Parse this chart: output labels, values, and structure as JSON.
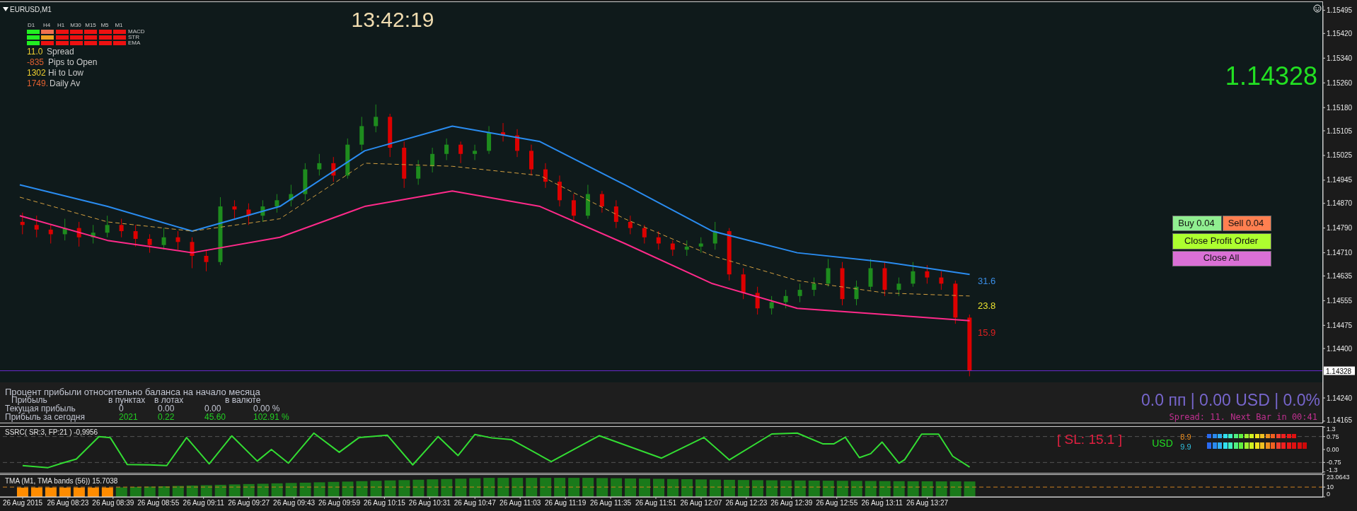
{
  "chart_data": [
    {
      "type": "candlestick",
      "title": "EURUSD,M1",
      "x": [
        "2015-08-26T08:07",
        "2015-08-26T08:12",
        "2015-08-26T08:17",
        "2015-08-26T08:22",
        "2015-08-26T08:27",
        "2015-08-26T08:32",
        "2015-08-26T08:37",
        "2015-08-26T08:42",
        "2015-08-26T08:47",
        "2015-08-26T08:52",
        "2015-08-26T08:57",
        "2015-08-26T09:02",
        "2015-08-26T09:07",
        "2015-08-26T09:12",
        "2015-08-26T09:17",
        "2015-08-26T09:22",
        "2015-08-26T09:27",
        "2015-08-26T09:32",
        "2015-08-26T09:37",
        "2015-08-26T09:42",
        "2015-08-26T09:47",
        "2015-08-26T09:52",
        "2015-08-26T09:57",
        "2015-08-26T10:02",
        "2015-08-26T10:07",
        "2015-08-26T10:12",
        "2015-08-26T10:17",
        "2015-08-26T10:22",
        "2015-08-26T10:27",
        "2015-08-26T10:32",
        "2015-08-26T10:37",
        "2015-08-26T10:42",
        "2015-08-26T10:47",
        "2015-08-26T10:52",
        "2015-08-26T10:57",
        "2015-08-26T11:02",
        "2015-08-26T11:07",
        "2015-08-26T11:12",
        "2015-08-26T11:17",
        "2015-08-26T11:22",
        "2015-08-26T11:27",
        "2015-08-26T11:32",
        "2015-08-26T11:37",
        "2015-08-26T11:42",
        "2015-08-26T11:47",
        "2015-08-26T11:52",
        "2015-08-26T11:57",
        "2015-08-26T12:02",
        "2015-08-26T12:07",
        "2015-08-26T12:12",
        "2015-08-26T12:17",
        "2015-08-26T12:22",
        "2015-08-26T12:27",
        "2015-08-26T12:32",
        "2015-08-26T12:37",
        "2015-08-26T12:42",
        "2015-08-26T12:47",
        "2015-08-26T12:52",
        "2015-08-26T12:57",
        "2015-08-26T13:02",
        "2015-08-26T13:07",
        "2015-08-26T13:12",
        "2015-08-26T13:17",
        "2015-08-26T13:22",
        "2015-08-26T13:27",
        "2015-08-26T13:32",
        "2015-08-26T13:37",
        "2015-08-26T13:42"
      ],
      "ohlc": [
        [
          1.1481,
          1.1484,
          1.1477,
          1.148
        ],
        [
          1.148,
          1.1483,
          1.1476,
          1.14785
        ],
        [
          1.14785,
          1.148,
          1.1474,
          1.1477
        ],
        [
          1.1477,
          1.1482,
          1.1475,
          1.1479
        ],
        [
          1.1479,
          1.1481,
          1.1473,
          1.1476
        ],
        [
          1.1476,
          1.148,
          1.1474,
          1.14775
        ],
        [
          1.14775,
          1.1483,
          1.1476,
          1.148
        ],
        [
          1.148,
          1.1482,
          1.1476,
          1.1478
        ],
        [
          1.1478,
          1.148,
          1.1473,
          1.14755
        ],
        [
          1.14755,
          1.1477,
          1.1471,
          1.14735
        ],
        [
          1.14735,
          1.1479,
          1.1472,
          1.1476
        ],
        [
          1.1476,
          1.1478,
          1.1472,
          1.14745
        ],
        [
          1.14745,
          1.1476,
          1.1466,
          1.147
        ],
        [
          1.147,
          1.1472,
          1.1465,
          1.1468
        ],
        [
          1.1468,
          1.1489,
          1.1467,
          1.1486
        ],
        [
          1.1486,
          1.1488,
          1.1482,
          1.1485
        ],
        [
          1.1485,
          1.1487,
          1.148,
          1.1483
        ],
        [
          1.1483,
          1.1488,
          1.1481,
          1.1486
        ],
        [
          1.1486,
          1.149,
          1.1484,
          1.1488
        ],
        [
          1.1488,
          1.1493,
          1.1486,
          1.149
        ],
        [
          1.149,
          1.15,
          1.1488,
          1.1498
        ],
        [
          1.1498,
          1.1503,
          1.1496,
          1.15
        ],
        [
          1.15,
          1.1502,
          1.1494,
          1.1496
        ],
        [
          1.1496,
          1.1508,
          1.1495,
          1.1506
        ],
        [
          1.1506,
          1.1515,
          1.1504,
          1.1512
        ],
        [
          1.1512,
          1.1519,
          1.151,
          1.1515
        ],
        [
          1.1515,
          1.1516,
          1.1502,
          1.1505
        ],
        [
          1.1505,
          1.1507,
          1.1492,
          1.1495
        ],
        [
          1.1495,
          1.1501,
          1.1493,
          1.1499
        ],
        [
          1.1499,
          1.1505,
          1.1497,
          1.1503
        ],
        [
          1.1503,
          1.1508,
          1.1501,
          1.1506
        ],
        [
          1.1506,
          1.1507,
          1.15,
          1.1503
        ],
        [
          1.1503,
          1.1506,
          1.1501,
          1.1504
        ],
        [
          1.1504,
          1.1512,
          1.1503,
          1.151
        ],
        [
          1.151,
          1.1513,
          1.1507,
          1.1509
        ],
        [
          1.1509,
          1.1511,
          1.1502,
          1.1504
        ],
        [
          1.1504,
          1.1506,
          1.1496,
          1.1498
        ],
        [
          1.1498,
          1.15,
          1.1492,
          1.1494
        ],
        [
          1.1494,
          1.1496,
          1.1486,
          1.1488
        ],
        [
          1.1488,
          1.149,
          1.1481,
          1.1483
        ],
        [
          1.1483,
          1.1493,
          1.1482,
          1.149
        ],
        [
          1.149,
          1.1491,
          1.1484,
          1.1486
        ],
        [
          1.1486,
          1.1488,
          1.1479,
          1.1481
        ],
        [
          1.1481,
          1.1483,
          1.1477,
          1.1479
        ],
        [
          1.1479,
          1.148,
          1.1474,
          1.1476
        ],
        [
          1.1476,
          1.1478,
          1.1472,
          1.1474
        ],
        [
          1.1474,
          1.1475,
          1.147,
          1.1472
        ],
        [
          1.1472,
          1.1475,
          1.147,
          1.1473
        ],
        [
          1.1473,
          1.1476,
          1.1471,
          1.1474
        ],
        [
          1.1474,
          1.1481,
          1.1472,
          1.1478
        ],
        [
          1.1478,
          1.1479,
          1.1462,
          1.1464
        ],
        [
          1.1464,
          1.1466,
          1.1456,
          1.1458
        ],
        [
          1.1458,
          1.146,
          1.1451,
          1.1453
        ],
        [
          1.1453,
          1.1457,
          1.1451,
          1.1455
        ],
        [
          1.1455,
          1.1459,
          1.1453,
          1.1457
        ],
        [
          1.1457,
          1.1461,
          1.1455,
          1.1459
        ],
        [
          1.1459,
          1.1463,
          1.1457,
          1.1461
        ],
        [
          1.1461,
          1.1469,
          1.146,
          1.1466
        ],
        [
          1.1466,
          1.1468,
          1.1454,
          1.1456
        ],
        [
          1.1456,
          1.1462,
          1.1454,
          1.146
        ],
        [
          1.146,
          1.1469,
          1.1459,
          1.1466
        ],
        [
          1.1466,
          1.1468,
          1.1457,
          1.1459
        ],
        [
          1.1459,
          1.1463,
          1.1457,
          1.1461
        ],
        [
          1.1461,
          1.1468,
          1.146,
          1.1465
        ],
        [
          1.1465,
          1.1467,
          1.1461,
          1.1463
        ],
        [
          1.1463,
          1.1465,
          1.1459,
          1.1461
        ],
        [
          1.1461,
          1.1462,
          1.1448,
          1.145
        ],
        [
          1.145,
          1.1451,
          1.1431,
          1.14328
        ]
      ],
      "colors": [
        "#dd0000",
        "#dd0000",
        "#dd0000",
        "#1e8c1e",
        "#dd0000",
        "#1e8c1e",
        "#1e8c1e",
        "#dd0000",
        "#dd0000",
        "#dd0000",
        "#1e8c1e",
        "#dd0000",
        "#dd0000",
        "#dd0000",
        "#1e8c1e",
        "#dd0000",
        "#dd0000",
        "#1e8c1e",
        "#1e8c1e",
        "#1e8c1e",
        "#1e8c1e",
        "#1e8c1e",
        "#dd0000",
        "#1e8c1e",
        "#1e8c1e",
        "#1e8c1e",
        "#dd0000",
        "#dd0000",
        "#1e8c1e",
        "#1e8c1e",
        "#1e8c1e",
        "#dd0000",
        "#1e8c1e",
        "#1e8c1e",
        "#dd0000",
        "#dd0000",
        "#dd0000",
        "#dd0000",
        "#dd0000",
        "#dd0000",
        "#1e8c1e",
        "#dd0000",
        "#dd0000",
        "#dd0000",
        "#dd0000",
        "#dd0000",
        "#dd0000",
        "#1e8c1e",
        "#1e8c1e",
        "#1e8c1e",
        "#dd0000",
        "#dd0000",
        "#dd0000",
        "#1e8c1e",
        "#1e8c1e",
        "#1e8c1e",
        "#1e8c1e",
        "#1e8c1e",
        "#dd0000",
        "#1e8c1e",
        "#1e8c1e",
        "#dd0000",
        "#1e8c1e",
        "#1e8c1e",
        "#dd0000",
        "#dd0000",
        "#dd0000",
        "#dd0000"
      ],
      "series": [
        {
          "type": "line",
          "color": "#2a8cf0",
          "x": [
            "2015-08-26T08:06",
            "2015-08-26T08:37",
            "2015-08-26T09:07",
            "2015-08-26T09:38",
            "2015-08-26T10:08",
            "2015-08-26T10:39",
            "2015-08-26T11:10",
            "2015-08-26T11:40",
            "2015-08-26T12:11",
            "2015-08-26T12:41",
            "2015-08-26T13:12",
            "2015-08-26T13:42"
          ],
          "values": [
            1.1493,
            1.1486,
            1.1478,
            1.1486,
            1.1504,
            1.1512,
            1.1507,
            1.1493,
            1.1478,
            1.1471,
            1.1468,
            1.1464
          ]
        },
        {
          "type": "line",
          "color": "#ff2a8a",
          "x": [
            "2015-08-26T08:06",
            "2015-08-26T08:37",
            "2015-08-26T09:07",
            "2015-08-26T09:38",
            "2015-08-26T10:08",
            "2015-08-26T10:39",
            "2015-08-26T11:10",
            "2015-08-26T11:40",
            "2015-08-26T12:11",
            "2015-08-26T12:41",
            "2015-08-26T13:12",
            "2015-08-26T13:42"
          ],
          "values": [
            1.1483,
            1.1475,
            1.1471,
            1.1476,
            1.1486,
            1.1491,
            1.1486,
            1.1474,
            1.1461,
            1.1453,
            1.1451,
            1.1449
          ]
        },
        {
          "type": "line",
          "color": "#d4a040",
          "line_style": "dashed",
          "x": [
            "2015-08-26T08:06",
            "2015-08-26T08:37",
            "2015-08-26T09:07",
            "2015-08-26T09:38",
            "2015-08-26T10:08",
            "2015-08-26T10:39",
            "2015-08-26T11:10",
            "2015-08-26T11:40",
            "2015-08-26T12:11",
            "2015-08-26T12:41",
            "2015-08-26T13:12",
            "2015-08-26T13:42"
          ],
          "values": [
            1.1489,
            1.1481,
            1.1478,
            1.1482,
            1.15,
            1.1499,
            1.1496,
            1.1482,
            1.147,
            1.1462,
            1.1458,
            1.1457
          ]
        }
      ],
      "xlim": [
        "2015-08-26T07:59",
        "2015-08-26T15:47"
      ],
      "ylim": [
        1.1416,
        1.1551
      ],
      "yticks": [
        1.15495,
        {
          "value": 1.1542,
          "label": "1.15420"
        },
        {
          "value": 1.1534,
          "label": "1.15340"
        },
        {
          "value": 1.1526,
          "label": "1.15260"
        },
        {
          "value": 1.1518,
          "label": "1.15180"
        },
        1.15105,
        1.15025,
        1.14945,
        {
          "value": 1.1487,
          "label": "1.14870"
        },
        {
          "value": 1.1479,
          "label": "1.14790"
        },
        {
          "value": 1.1471,
          "label": "1.14710"
        },
        1.14635,
        1.14555,
        1.14475,
        {
          "value": 1.144,
          "label": "1.14400"
        },
        {
          "value": 1.1424,
          "label": "1.14240"
        },
        1.14165
      ],
      "tick_labels": "y",
      "ref_lines": [
        {
          "axis": "y",
          "value": 1.14328,
          "label": "1.14328",
          "color": "#6a2ad0"
        }
      ],
      "annotations": [
        "13:42:19",
        "D1",
        "H4",
        "H1",
        "M30",
        "M15",
        "M5",
        "M1",
        "MACD",
        "STR",
        "EMA",
        "11.0",
        "Spread",
        "-835",
        "Pips to Open",
        "1302",
        "Hi to Low",
        "1749.",
        "Daily Av",
        "1.14328",
        "Buy 0.04",
        "Sell 0.04",
        "Close Profit Order",
        "Close All",
        "Процент прибыли относительно баланса на начало месяца",
        "Прибыль",
        "в пунктах",
        "в лотах",
        "в валюте",
        "Текущая прибыль",
        "0",
        "0.00",
        "0.00",
        "0.00 %",
        "Прибыль за сегодня",
        "2021",
        "0.22",
        "45.60",
        "102.91 %",
        "0.0 пп | 0.00 USD | 0.0%",
        "Spread: 11. Next Bar in 00:41",
        "31.6",
        "23.8",
        "15.9"
      ]
    },
    {
      "type": "line",
      "title": "SSRC( SR:3, FP:21 ) -0,9956",
      "series": [
        {
          "color": "#33dd33",
          "x": [
            "2015-08-26T08:07",
            "2015-08-26T08:16",
            "2015-08-26T08:21",
            "2015-08-26T08:26",
            "2015-08-26T08:34",
            "2015-08-26T08:38",
            "2015-08-26T08:44",
            "2015-08-26T08:52",
            "2015-08-26T08:58",
            "2015-08-26T09:05",
            "2015-08-26T09:13",
            "2015-08-26T09:21",
            "2015-08-26T09:30",
            "2015-08-26T09:35",
            "2015-08-26T09:41",
            "2015-08-26T09:50",
            "2015-08-26T09:59",
            "2015-08-26T10:06",
            "2015-08-26T10:16",
            "2015-08-26T10:25",
            "2015-08-26T10:34",
            "2015-08-26T10:41",
            "2015-08-26T10:47",
            "2015-08-26T10:53",
            "2015-08-26T11:00",
            "2015-08-26T11:14",
            "2015-08-26T11:31",
            "2015-08-26T11:53",
            "2015-08-26T12:08",
            "2015-08-26T12:17",
            "2015-08-26T12:32",
            "2015-08-26T12:41",
            "2015-08-26T12:50",
            "2015-08-26T12:54",
            "2015-08-26T12:58",
            "2015-08-26T13:03",
            "2015-08-26T13:07",
            "2015-08-26T13:11",
            "2015-08-26T13:17",
            "2015-08-26T13:19",
            "2015-08-26T13:25",
            "2015-08-26T13:31",
            "2015-08-26T13:36",
            "2015-08-26T13:42"
          ],
          "values": [
            -0.93,
            -1.05,
            -0.79,
            -0.55,
            0.75,
            0.69,
            -0.87,
            -0.89,
            -0.93,
            0.69,
            -0.83,
            0.79,
            -0.67,
            0.0,
            -0.79,
            0.95,
            -0.16,
            0.69,
            0.83,
            -0.89,
            0.75,
            -0.35,
            0.87,
            0.67,
            0.57,
            -0.7,
            0.8,
            -0.5,
            0.7,
            -0.6,
            0.9,
            0.95,
            0.33,
            0.33,
            0.71,
            -0.47,
            -0.24,
            0.43,
            -0.79,
            -0.59,
            0.89,
            0.89,
            -0.39,
            -1.02
          ]
        }
      ],
      "xlim": [
        "2015-08-26T07:59",
        "2015-08-26T15:47"
      ],
      "ylim": [
        -1.35,
        1.35
      ],
      "yticks": [
        1.3,
        0.75,
        {
          "value": 0,
          "label": "0.00"
        },
        -0.75,
        -1.3
      ],
      "tick_labels": "y",
      "ref_lines": [
        {
          "axis": "y",
          "value": 0.75,
          "color": "#555555",
          "line_style": "dashed"
        },
        {
          "axis": "y",
          "value": -0.75,
          "color": "#555555",
          "line_style": "dashed"
        }
      ],
      "annotations": [
        "[ SL: 15.1 ]",
        "USD",
        "8.9",
        "9.9"
      ]
    },
    {
      "type": "bar",
      "title": "TMA (M1, TMA bands (56)) 15.7038",
      "x": [
        "2015-08-26T08:07",
        "2015-08-26T08:12",
        "2015-08-26T08:17",
        "2015-08-26T08:22",
        "2015-08-26T08:27",
        "2015-08-26T08:32",
        "2015-08-26T08:37",
        "2015-08-26T08:42",
        "2015-08-26T08:47",
        "2015-08-26T08:52",
        "2015-08-26T08:57",
        "2015-08-26T09:02",
        "2015-08-26T09:07",
        "2015-08-26T09:12",
        "2015-08-26T09:17",
        "2015-08-26T09:22",
        "2015-08-26T09:27",
        "2015-08-26T09:32",
        "2015-08-26T09:37",
        "2015-08-26T09:42",
        "2015-08-26T09:47",
        "2015-08-26T09:52",
        "2015-08-26T09:57",
        "2015-08-26T10:02",
        "2015-08-26T10:07",
        "2015-08-26T10:12",
        "2015-08-26T10:17",
        "2015-08-26T10:22",
        "2015-08-26T10:27",
        "2015-08-26T10:32",
        "2015-08-26T10:37",
        "2015-08-26T10:42",
        "2015-08-26T10:47",
        "2015-08-26T10:52",
        "2015-08-26T10:57",
        "2015-08-26T11:02",
        "2015-08-26T11:07",
        "2015-08-26T11:12",
        "2015-08-26T11:17",
        "2015-08-26T11:22",
        "2015-08-26T11:27",
        "2015-08-26T11:32",
        "2015-08-26T11:37",
        "2015-08-26T11:42",
        "2015-08-26T11:47",
        "2015-08-26T11:52",
        "2015-08-26T11:57",
        "2015-08-26T12:02",
        "2015-08-26T12:07",
        "2015-08-26T12:12",
        "2015-08-26T12:17",
        "2015-08-26T12:22",
        "2015-08-26T12:27",
        "2015-08-26T12:32",
        "2015-08-26T12:37",
        "2015-08-26T12:42",
        "2015-08-26T12:47",
        "2015-08-26T12:52",
        "2015-08-26T12:57",
        "2015-08-26T13:02",
        "2015-08-26T13:07",
        "2015-08-26T13:12",
        "2015-08-26T13:17",
        "2015-08-26T13:22",
        "2015-08-26T13:27",
        "2015-08-26T13:32",
        "2015-08-26T13:37",
        "2015-08-26T13:42"
      ],
      "values": [
        9.4,
        9.4,
        9.4,
        9.4,
        9.4,
        9.4,
        9.4,
        9.7,
        10.1,
        10.5,
        10.8,
        11.2,
        11.6,
        11.9,
        12.3,
        12.7,
        13.1,
        13.4,
        13.8,
        14.2,
        14.5,
        14.9,
        15.3,
        15.6,
        16,
        16.4,
        16.8,
        17.1,
        17.5,
        17.9,
        18.2,
        18.6,
        19,
        19.4,
        19.4,
        19.4,
        19.4,
        19.4,
        19.4,
        19.4,
        19.4,
        19.2,
        19,
        18.8,
        18.6,
        18.4,
        18.2,
        18,
        17.8,
        17.6,
        17.4,
        17.2,
        17,
        16.9,
        16.8,
        16.7,
        16.6,
        16.5,
        16.4,
        16.3,
        16.2,
        16.1,
        16,
        15.9,
        15.9,
        15.8,
        15.8,
        15.7
      ],
      "colors": [
        "#ff8c00",
        "#ff8c00",
        "#ff8c00",
        "#ff8c00",
        "#ff8c00",
        "#ff8c00",
        "#ff8c00",
        "#1a7a1a",
        "#1a7a1a",
        "#1a7a1a",
        "#1a7a1a",
        "#1a7a1a",
        "#1a7a1a",
        "#1a7a1a",
        "#1a7a1a",
        "#1a7a1a",
        "#1a7a1a",
        "#1a7a1a",
        "#1a7a1a",
        "#1a7a1a",
        "#1a7a1a",
        "#1a7a1a",
        "#1a7a1a",
        "#1a7a1a",
        "#1a7a1a",
        "#1a7a1a",
        "#1a7a1a",
        "#1a7a1a",
        "#1a7a1a",
        "#1a7a1a",
        "#1a7a1a",
        "#1a7a1a",
        "#1a7a1a",
        "#1a7a1a",
        "#1a7a1a",
        "#1a7a1a",
        "#1a7a1a",
        "#1a7a1a",
        "#1a7a1a",
        "#1a7a1a",
        "#1a7a1a",
        "#1a7a1a",
        "#1a7a1a",
        "#1a7a1a",
        "#1a7a1a",
        "#1a7a1a",
        "#1a7a1a",
        "#1a7a1a",
        "#1a7a1a",
        "#1a7a1a",
        "#1a7a1a",
        "#1a7a1a",
        "#1a7a1a",
        "#1a7a1a",
        "#1a7a1a",
        "#1a7a1a",
        "#1a7a1a",
        "#1a7a1a",
        "#1a7a1a",
        "#1a7a1a",
        "#1a7a1a",
        "#1a7a1a",
        "#1a7a1a",
        "#1a7a1a",
        "#1a7a1a",
        "#1a7a1a",
        "#1a7a1a",
        "#1a7a1a"
      ],
      "xlim": [
        "2015-08-26T07:59",
        "2015-08-26T15:47"
      ],
      "ylim": [
        0,
        23.0643
      ],
      "xticks": [
        {
          "value": "2015-08-26T08:07",
          "label": "26 Aug 2015"
        },
        {
          "value": "2015-08-26T08:23",
          "label": "26 Aug 08:23"
        },
        {
          "value": "2015-08-26T08:39",
          "label": "26 Aug 08:39"
        },
        {
          "value": "2015-08-26T08:55",
          "label": "26 Aug 08:55"
        },
        {
          "value": "2015-08-26T09:11",
          "label": "26 Aug 09:11"
        },
        {
          "value": "2015-08-26T09:27",
          "label": "26 Aug 09:27"
        },
        {
          "value": "2015-08-26T09:43",
          "label": "26 Aug 09:43"
        },
        {
          "value": "2015-08-26T09:59",
          "label": "26 Aug 09:59"
        },
        {
          "value": "2015-08-26T10:15",
          "label": "26 Aug 10:15"
        },
        {
          "value": "2015-08-26T10:31",
          "label": "26 Aug 10:31"
        },
        {
          "value": "2015-08-26T10:47",
          "label": "26 Aug 10:47"
        },
        {
          "value": "2015-08-26T11:03",
          "label": "26 Aug 11:03"
        },
        {
          "value": "2015-08-26T11:19",
          "label": "26 Aug 11:19"
        },
        {
          "value": "2015-08-26T11:35",
          "label": "26 Aug 11:35"
        },
        {
          "value": "2015-08-26T11:51",
          "label": "26 Aug 11:51"
        },
        {
          "value": "2015-08-26T12:07",
          "label": "26 Aug 12:07"
        },
        {
          "value": "2015-08-26T12:23",
          "label": "26 Aug 12:23"
        },
        {
          "value": "2015-08-26T12:39",
          "label": "26 Aug 12:39"
        },
        {
          "value": "2015-08-26T12:55",
          "label": "26 Aug 12:55"
        },
        {
          "value": "2015-08-26T13:11",
          "label": "26 Aug 13:11"
        },
        {
          "value": "2015-08-26T13:27",
          "label": "26 Aug 13:27"
        }
      ],
      "yticks": [
        23.0643,
        10,
        0
      ],
      "ref_lines": [
        {
          "axis": "y",
          "value": 10,
          "color": "#d08020",
          "line_style": "dashed"
        }
      ]
    }
  ]
}
